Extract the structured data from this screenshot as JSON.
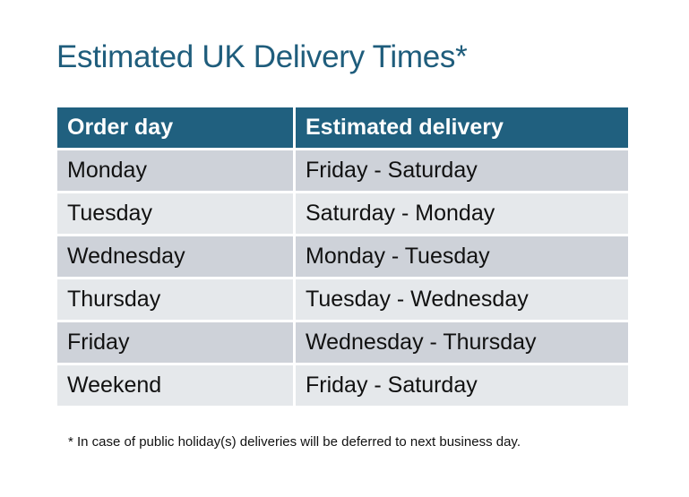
{
  "title": "Estimated UK Delivery Times*",
  "table": {
    "headers": [
      "Order day",
      "Estimated delivery"
    ],
    "rows": [
      [
        "Monday",
        "Friday - Saturday"
      ],
      [
        "Tuesday",
        "Saturday - Monday"
      ],
      [
        "Wednesday",
        "Monday - Tuesday"
      ],
      [
        "Thursday",
        "Tuesday - Wednesday"
      ],
      [
        "Friday",
        "Wednesday - Thursday"
      ],
      [
        "Weekend",
        "Friday - Saturday"
      ]
    ]
  },
  "footnote": "* In case of public holiday(s) deliveries will be deferred to next business day.",
  "colors": {
    "header": "#20607f",
    "title": "#1f5d7c",
    "row_odd": "#ced2d9",
    "row_even": "#e5e8eb"
  }
}
